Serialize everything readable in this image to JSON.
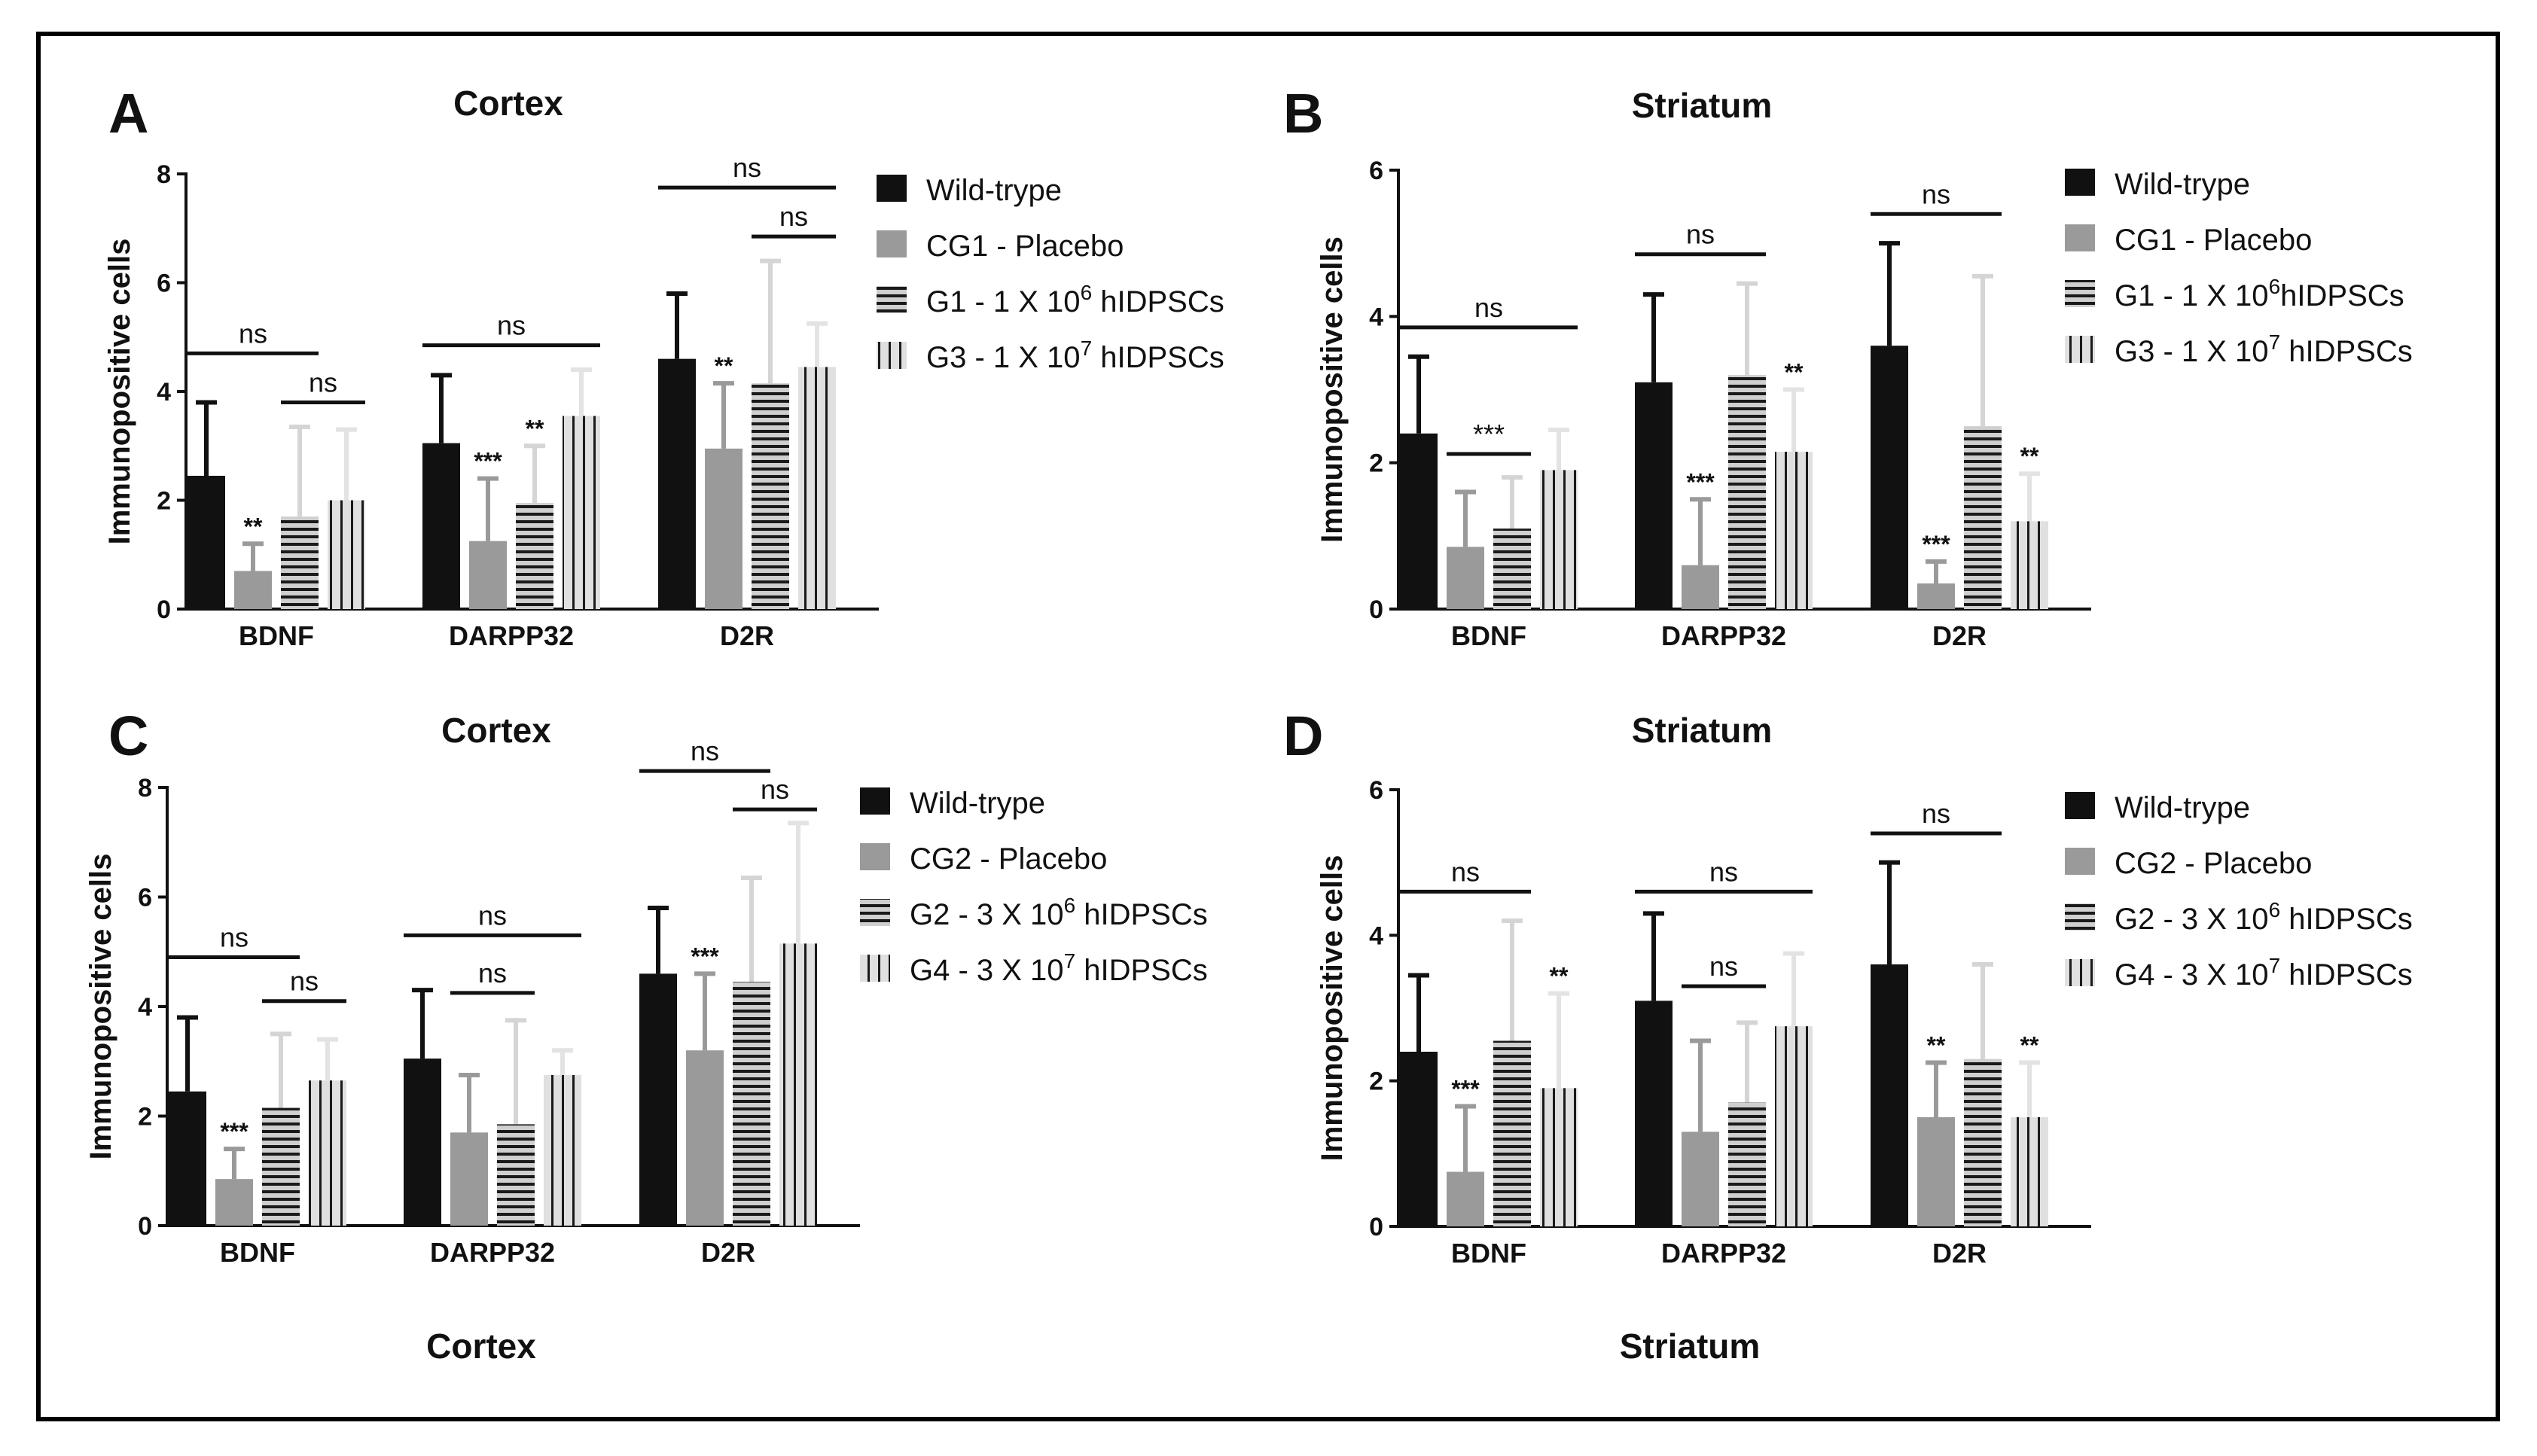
{
  "figure": {
    "footer_left": "Cortex",
    "footer_right": "Striatum",
    "colors": {
      "wild": "#111111",
      "placebo": "#9a9a9a",
      "g_low": "#cfcfcf",
      "g_high": "#e0e0e0",
      "err_low": "#d5d5d5",
      "err_high": "#e3e3e3"
    }
  },
  "chart_data": [
    {
      "panel": "A",
      "type": "bar",
      "title": "Cortex",
      "ylabel": "Immunopositive cells",
      "ylim": [
        0,
        8
      ],
      "yticks": [
        "0",
        "2",
        "4",
        "6",
        "8"
      ],
      "categories": [
        "BDNF",
        "DARPP32",
        "D2R"
      ],
      "series": [
        {
          "name": "Wild-trype",
          "legend": [
            "Wild-trype"
          ],
          "values": [
            2.45,
            3.05,
            4.6
          ],
          "errors": [
            3.8,
            4.3,
            5.8
          ]
        },
        {
          "name": "CG1 - Placebo",
          "legend": [
            "CG1 - Placebo"
          ],
          "values": [
            0.7,
            1.25,
            2.95
          ],
          "errors": [
            1.2,
            2.4,
            4.15
          ]
        },
        {
          "name": "G1 - 1 X 10^6 hIDPSCs",
          "legend": [
            "G1 - 1 X 10",
            "6",
            " hIDPSCs"
          ],
          "values": [
            1.7,
            1.95,
            4.15
          ],
          "errors": [
            3.35,
            3.0,
            6.4
          ]
        },
        {
          "name": "G3 - 1 X 10^7 hIDPSCs",
          "legend": [
            "G3 - 1 X 10",
            "7",
            " hIDPSCs"
          ],
          "values": [
            2.0,
            3.55,
            4.45
          ],
          "errors": [
            3.3,
            4.4,
            5.25
          ]
        }
      ],
      "stars": [
        {
          "category": 0,
          "series": 1,
          "text": "**"
        },
        {
          "category": 1,
          "series": 1,
          "text": "***"
        },
        {
          "category": 1,
          "series": 2,
          "text": "**"
        },
        {
          "category": 2,
          "series": 1,
          "text": "**"
        }
      ],
      "brackets": [
        {
          "category": 0,
          "from": 0,
          "to": 2,
          "level": 4.7,
          "text": "ns"
        },
        {
          "category": 0,
          "from": 2,
          "to": 3,
          "level": 3.8,
          "text": "ns"
        },
        {
          "category": 1,
          "from": 0,
          "to": 3,
          "level": 4.85,
          "text": "ns"
        },
        {
          "category": 2,
          "from": 0,
          "to": 3,
          "level": 7.75,
          "text": "ns"
        },
        {
          "category": 2,
          "from": 2,
          "to": 3,
          "level": 6.85,
          "text": "ns"
        }
      ]
    },
    {
      "panel": "B",
      "type": "bar",
      "title": "Striatum",
      "ylabel": "Immunopositive cells",
      "ylim": [
        0,
        6
      ],
      "yticks": [
        "0",
        "2",
        "4",
        "6"
      ],
      "categories": [
        "BDNF",
        "DARPP32",
        "D2R"
      ],
      "series": [
        {
          "name": "Wild-trype",
          "legend": [
            "Wild-trype"
          ],
          "values": [
            2.4,
            3.1,
            3.6
          ],
          "errors": [
            3.45,
            4.3,
            5.0
          ]
        },
        {
          "name": "CG1 - Placebo",
          "legend": [
            "CG1 - Placebo"
          ],
          "values": [
            0.85,
            0.6,
            0.35
          ],
          "errors": [
            1.6,
            1.5,
            0.65
          ]
        },
        {
          "name": "G1 - 1 X 10^6 hIDPSCs",
          "legend": [
            "G1 - 1 X 10",
            "6",
            "hIDPSCs"
          ],
          "values": [
            1.1,
            3.2,
            2.5
          ],
          "errors": [
            1.8,
            4.45,
            4.55
          ]
        },
        {
          "name": "G3 - 1 X 10^7 hIDPSCs",
          "legend": [
            "G3 - 1 X 10",
            "7",
            " hIDPSCs"
          ],
          "values": [
            1.9,
            2.15,
            1.2
          ],
          "errors": [
            2.45,
            3.0,
            1.85
          ]
        }
      ],
      "stars": [
        {
          "category": 1,
          "series": 1,
          "text": "***"
        },
        {
          "category": 1,
          "series": 3,
          "text": "**"
        },
        {
          "category": 2,
          "series": 1,
          "text": "***"
        },
        {
          "category": 2,
          "series": 3,
          "text": "**"
        }
      ],
      "brackets": [
        {
          "category": 0,
          "from": 0,
          "to": 3,
          "level": 3.85,
          "text": "ns"
        },
        {
          "category": 0,
          "from": 1,
          "to": 2,
          "level": 2.12,
          "text": "***"
        },
        {
          "category": 1,
          "from": 0,
          "to": 2,
          "level": 4.85,
          "text": "ns"
        },
        {
          "category": 2,
          "from": 0,
          "to": 2,
          "level": 5.4,
          "text": "ns"
        }
      ]
    },
    {
      "panel": "C",
      "type": "bar",
      "title": "Cortex",
      "ylabel": "Immunopositive cells",
      "ylim": [
        0,
        8
      ],
      "yticks": [
        "0",
        "2",
        "4",
        "6",
        "8"
      ],
      "categories": [
        "BDNF",
        "DARPP32",
        "D2R"
      ],
      "series": [
        {
          "name": "Wild-trype",
          "legend": [
            "Wild-trype"
          ],
          "values": [
            2.45,
            3.05,
            4.6
          ],
          "errors": [
            3.8,
            4.3,
            5.8
          ]
        },
        {
          "name": "CG2 - Placebo",
          "legend": [
            "CG2 - Placebo"
          ],
          "values": [
            0.85,
            1.7,
            3.2
          ],
          "errors": [
            1.4,
            2.75,
            4.6
          ]
        },
        {
          "name": "G2 - 3 X 10^6 hIDPSCs",
          "legend": [
            "G2 - 3 X 10",
            "6",
            " hIDPSCs"
          ],
          "values": [
            2.15,
            1.85,
            4.45
          ],
          "errors": [
            3.5,
            3.75,
            6.35
          ]
        },
        {
          "name": "G4 - 3 X 10^7 hIDPSCs",
          "legend": [
            "G4 - 3 X 10",
            "7",
            " hIDPSCs"
          ],
          "values": [
            2.65,
            2.75,
            5.15
          ],
          "errors": [
            3.4,
            3.2,
            7.35
          ]
        }
      ],
      "stars": [
        {
          "category": 0,
          "series": 1,
          "text": "***"
        },
        {
          "category": 2,
          "series": 1,
          "text": "***"
        }
      ],
      "brackets": [
        {
          "category": 0,
          "from": 0,
          "to": 2,
          "level": 4.9,
          "text": "ns"
        },
        {
          "category": 0,
          "from": 2,
          "to": 3,
          "level": 4.1,
          "text": "ns"
        },
        {
          "category": 1,
          "from": 0,
          "to": 3,
          "level": 5.3,
          "text": "ns"
        },
        {
          "category": 1,
          "from": 1,
          "to": 2,
          "level": 4.25,
          "text": "ns"
        },
        {
          "category": 2,
          "from": 0,
          "to": 2,
          "level": 8.3,
          "text": "ns"
        },
        {
          "category": 2,
          "from": 2,
          "to": 3,
          "level": 7.6,
          "text": "ns"
        }
      ]
    },
    {
      "panel": "D",
      "type": "bar",
      "title": "Striatum",
      "ylabel": "Immunopositive cells",
      "ylim": [
        0,
        6
      ],
      "yticks": [
        "0",
        "2",
        "4",
        "6"
      ],
      "categories": [
        "BDNF",
        "DARPP32",
        "D2R"
      ],
      "series": [
        {
          "name": "Wild-trype",
          "legend": [
            "Wild-trype"
          ],
          "values": [
            2.4,
            3.1,
            3.6
          ],
          "errors": [
            3.45,
            4.3,
            5.0
          ]
        },
        {
          "name": "CG2 - Placebo",
          "legend": [
            "CG2 - Placebo"
          ],
          "values": [
            0.75,
            1.3,
            1.5
          ],
          "errors": [
            1.65,
            2.55,
            2.25
          ]
        },
        {
          "name": "G2 - 3 X 10^6 hIDPSCs",
          "legend": [
            "G2 - 3 X 10",
            "6",
            " hIDPSCs"
          ],
          "values": [
            2.55,
            1.7,
            2.3
          ],
          "errors": [
            4.2,
            2.8,
            3.6
          ]
        },
        {
          "name": "G4 - 3 X 10^7 hIDPSCs",
          "legend": [
            "G4 - 3 X 10",
            "7",
            " hIDPSCs"
          ],
          "values": [
            1.9,
            2.75,
            1.5
          ],
          "errors": [
            3.2,
            3.75,
            2.25
          ]
        }
      ],
      "stars": [
        {
          "category": 0,
          "series": 1,
          "text": "***"
        },
        {
          "category": 0,
          "series": 3,
          "text": "**"
        },
        {
          "category": 2,
          "series": 1,
          "text": "**"
        },
        {
          "category": 2,
          "series": 3,
          "text": "**"
        }
      ],
      "brackets": [
        {
          "category": 0,
          "from": 0,
          "to": 2,
          "level": 4.6,
          "text": "ns"
        },
        {
          "category": 1,
          "from": 0,
          "to": 3,
          "level": 4.6,
          "text": "ns"
        },
        {
          "category": 1,
          "from": 1,
          "to": 2,
          "level": 3.3,
          "text": "ns"
        },
        {
          "category": 2,
          "from": 0,
          "to": 2,
          "level": 5.4,
          "text": "ns"
        }
      ]
    }
  ]
}
